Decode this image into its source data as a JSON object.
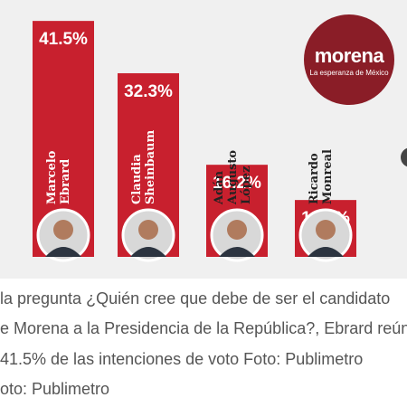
{
  "chart_data": {
    "type": "bar",
    "categories": [
      "Marcelo Ebrard",
      "Claudia Sheinbaum",
      "Adán Augusto López",
      "Ricardo Monreal"
    ],
    "name_lines": [
      [
        "Marcelo",
        "Ebrard"
      ],
      [
        "Claudia",
        "Sheinbaum"
      ],
      [
        "Adán",
        "Augusto",
        "López"
      ],
      [
        "Ricardo",
        "Monreal"
      ]
    ],
    "values": [
      41.5,
      32.3,
      16.2,
      10.0
    ],
    "value_labels": [
      "41.5%",
      "32.3%",
      "16.2%",
      "10.0%"
    ],
    "ylim": [
      0,
      42
    ],
    "title": "",
    "xlabel": "",
    "ylabel": "",
    "grid": false,
    "bar_color": "#c8202e"
  },
  "logo": {
    "name": "morena",
    "tagline": "La esperanza de México",
    "color": "#8a1d27"
  },
  "caption": {
    "lines": [
      "la pregunta ¿Quién cree que debe de ser el candidato",
      "e Morena a la Presidencia de la República?, Ebrard reún",
      " 41.5% de las intenciones de voto Foto: Publimetro",
      "oto: Publimetro"
    ]
  }
}
